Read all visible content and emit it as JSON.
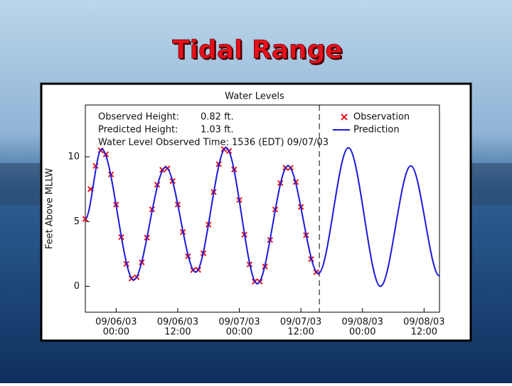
{
  "slide_title": "Tidal Range",
  "chart_data": {
    "type": "line",
    "title": "Water Levels",
    "ylabel": "Feet Above MLLW",
    "annotations": [
      "Observed Height:",
      "0.82 ft.",
      "Predicted Height:",
      "1.03 ft.",
      "Water Level Observed Time: 1536 (EDT) 09/07/03"
    ],
    "vline": "09/07/03 15:36",
    "xlim": [
      "09/05/03 18:00",
      "09/08/03 15:00"
    ],
    "xticks": [
      {
        "value": "09/06/03 00:00",
        "label": [
          "09/06/03",
          "00:00"
        ]
      },
      {
        "value": "09/06/03 12:00",
        "label": [
          "09/06/03",
          "12:00"
        ]
      },
      {
        "value": "09/07/03 00:00",
        "label": [
          "09/07/03",
          "00:00"
        ]
      },
      {
        "value": "09/07/03 12:00",
        "label": [
          "09/07/03",
          "12:00"
        ]
      },
      {
        "value": "09/08/03 00:00",
        "label": [
          "09/08/03",
          "00:00"
        ]
      },
      {
        "value": "09/08/03 12:00",
        "label": [
          "09/08/03",
          "12:00"
        ]
      }
    ],
    "ylim": [
      -2,
      14
    ],
    "yticks": [
      0,
      5,
      10
    ],
    "series": [
      {
        "name": "Observation",
        "color": "#e8141c",
        "marker": "x",
        "x": [
          "09/05/03 18:00",
          "09/05/03 19:00",
          "09/05/03 20:00",
          "09/05/03 21:00",
          "09/05/03 22:00",
          "09/05/03 23:00",
          "09/06/03 00:00",
          "09/06/03 01:00",
          "09/06/03 02:00",
          "09/06/03 03:00",
          "09/06/03 04:00",
          "09/06/03 05:00",
          "09/06/03 06:00",
          "09/06/03 07:00",
          "09/06/03 08:00",
          "09/06/03 09:00",
          "09/06/03 10:00",
          "09/06/03 11:00",
          "09/06/03 12:00",
          "09/06/03 13:00",
          "09/06/03 14:00",
          "09/06/03 15:00",
          "09/06/03 16:00",
          "09/06/03 17:00",
          "09/06/03 18:00",
          "09/06/03 19:00",
          "09/06/03 20:00",
          "09/06/03 21:00",
          "09/06/03 22:00",
          "09/06/03 23:00",
          "09/07/03 00:00",
          "09/07/03 01:00",
          "09/07/03 02:00",
          "09/07/03 03:00",
          "09/07/03 04:00",
          "09/07/03 05:00",
          "09/07/03 06:00",
          "09/07/03 07:00",
          "09/07/03 08:00",
          "09/07/03 09:00",
          "09/07/03 10:00",
          "09/07/03 11:00",
          "09/07/03 12:00",
          "09/07/03 13:00",
          "09/07/03 14:00",
          "09/07/03 15:00"
        ],
        "values": [
          5.2,
          7.5,
          9.3,
          10.5,
          10.19,
          8.64,
          6.31,
          3.8,
          1.73,
          0.6,
          0.7,
          1.85,
          3.76,
          5.94,
          7.85,
          9.0,
          9.11,
          8.13,
          6.32,
          4.19,
          2.32,
          1.25,
          1.27,
          2.55,
          4.77,
          7.28,
          9.43,
          10.59,
          10.45,
          9.02,
          6.66,
          3.99,
          1.69,
          0.37,
          0.36,
          1.53,
          3.58,
          5.93,
          7.97,
          9.15,
          9.15,
          8.05,
          6.13,
          3.95,
          2.1,
          1.09
        ]
      },
      {
        "name": "Prediction",
        "color": "#1a1adc",
        "x": [
          "09/05/03 18:00",
          "09/05/03 21:10",
          "09/06/03 03:25",
          "09/06/03 09:40",
          "09/06/03 15:30",
          "09/06/03 21:25",
          "09/07/03 03:30",
          "09/07/03 09:30",
          "09/07/03 15:25",
          "09/07/03 21:15",
          "09/08/03 03:30",
          "09/08/03 09:25",
          "09/08/03 15:00"
        ],
        "values": [
          5.2,
          10.6,
          0.5,
          9.2,
          1.1,
          10.7,
          0.2,
          9.3,
          1.0,
          10.7,
          0.0,
          9.3,
          0.8
        ]
      }
    ]
  }
}
